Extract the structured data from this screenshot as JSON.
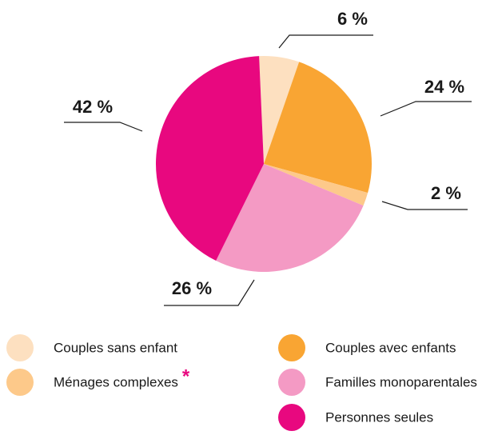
{
  "chart_data": {
    "type": "pie",
    "categories": [
      "Couples sans enfant",
      "Couples avec enfants",
      "Ménages complexes",
      "Familles monoparentales",
      "Personnes seules"
    ],
    "values": [
      6,
      24,
      2,
      26,
      42
    ],
    "value_labels": [
      "6 %",
      "24 %",
      "2 %",
      "26 %",
      "42 %"
    ],
    "colors": [
      "#fde0c0",
      "#f9a533",
      "#fdc98a",
      "#f49ac4",
      "#e8087f"
    ],
    "annotations": [
      "*"
    ]
  }
}
